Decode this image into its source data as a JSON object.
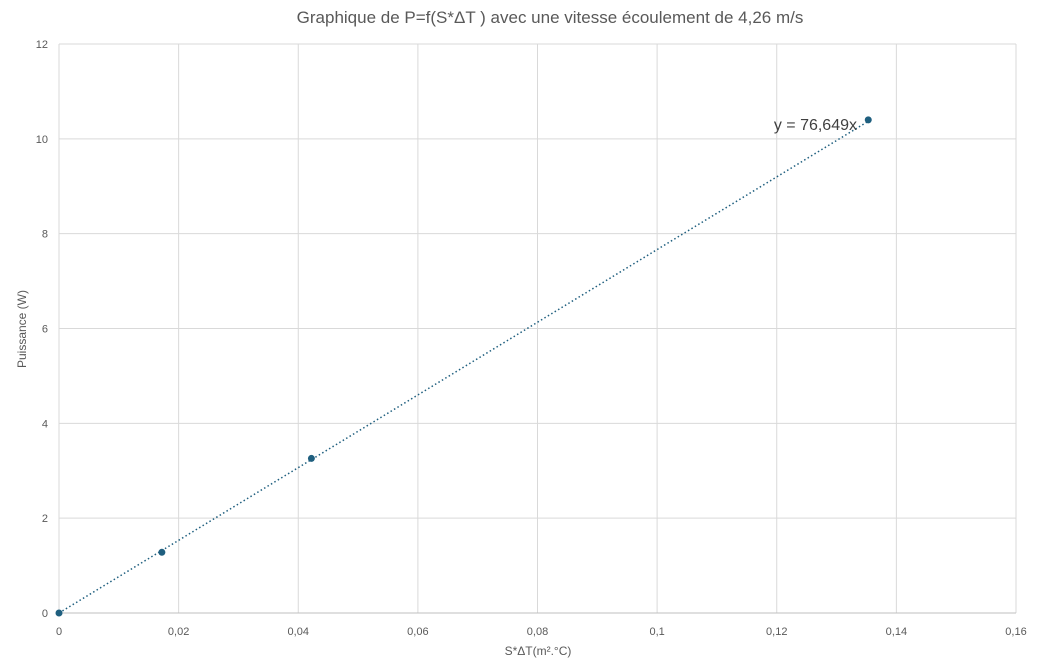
{
  "chart_data": {
    "type": "scatter",
    "title": "Graphique de P=f(S*ΔT ) avec une vitesse écoulement de 4,26 m/s",
    "xlabel": "S*ΔT(m².°C)",
    "ylabel": "Puissance (W)",
    "xlim": [
      0,
      0.16
    ],
    "ylim": [
      0,
      12
    ],
    "x_ticks": [
      0,
      0.02,
      0.04,
      0.06,
      0.08,
      0.1,
      0.12,
      0.14,
      0.16
    ],
    "x_tick_labels": [
      "0",
      "0,02",
      "0,04",
      "0,06",
      "0,08",
      "0,1",
      "0,12",
      "0,14",
      "0,16"
    ],
    "y_ticks": [
      0,
      2,
      4,
      6,
      8,
      10,
      12
    ],
    "y_tick_labels": [
      "0",
      "2",
      "4",
      "6",
      "8",
      "10",
      "12"
    ],
    "grid": true,
    "legend": "none",
    "series": [
      {
        "color": "#1f5f7f",
        "x": [
          0,
          0.0172,
          0.0422,
          0.1353
        ],
        "y": [
          0,
          1.28,
          3.26,
          10.4
        ]
      }
    ],
    "trendline": {
      "type": "linear-through-origin",
      "slope": 76.649,
      "x_range": [
        0,
        0.1353
      ],
      "equation_label": "y = 76,649x",
      "style": "dotted",
      "color": "#1f5f7f"
    }
  }
}
